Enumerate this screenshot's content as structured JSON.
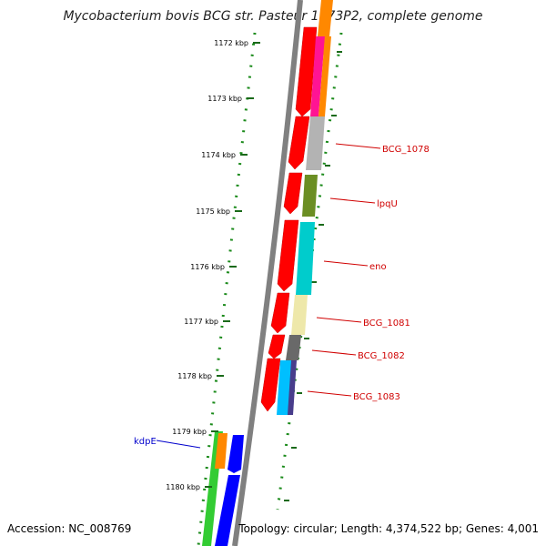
{
  "title": "Mycobacterium bovis BCG str. Pasteur 1173P2, complete genome",
  "footer": {
    "accession": "Accession: NC_008769",
    "topology": "Topology: circular; Length: 4,374,522 bp; Genes: 4,001"
  },
  "ticks": [
    "1172 kbp",
    "1173 kbp",
    "1174 kbp",
    "1175 kbp",
    "1176 kbp",
    "1177 kbp",
    "1178 kbp",
    "1179 kbp",
    "1180 kbp"
  ],
  "gene_labels": [
    {
      "name": "BCG_1078",
      "color": "#d00000"
    },
    {
      "name": "lpqU",
      "color": "#d00000"
    },
    {
      "name": "eno",
      "color": "#d00000"
    },
    {
      "name": "BCG_1081",
      "color": "#d00000"
    },
    {
      "name": "BCG_1082",
      "color": "#d00000"
    },
    {
      "name": "BCG_1083",
      "color": "#d00000"
    },
    {
      "name": "kdpE",
      "color": "#0000cc"
    }
  ],
  "colors": {
    "backbone": "#808080",
    "tick": "#006400",
    "forward_cds": "#ff0000",
    "reverse_cds": "#0000ff"
  }
}
